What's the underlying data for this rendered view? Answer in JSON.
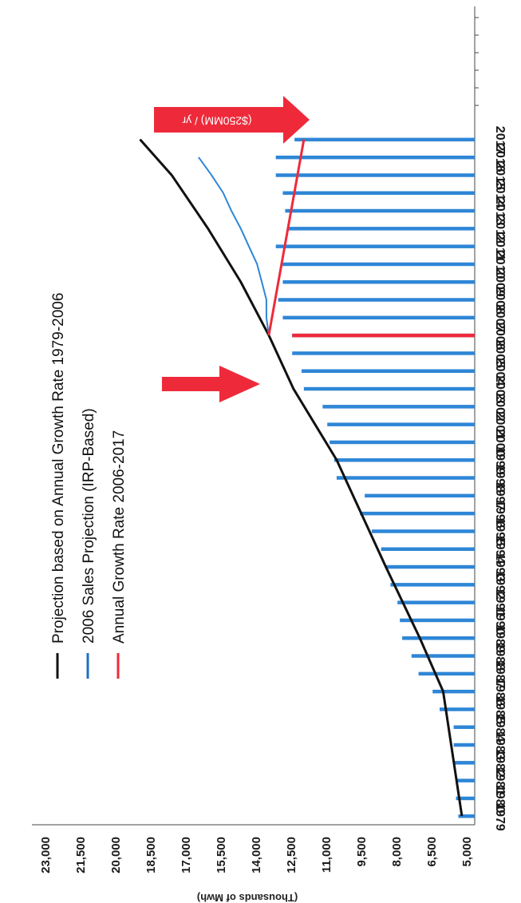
{
  "chart_data": {
    "type": "bar",
    "orientation": "rotated-90",
    "ylabel": "(Thousands of Mwh)",
    "y_ticks": [
      "5,000",
      "6,500",
      "8,000",
      "9,500",
      "11,000",
      "12,500",
      "14,000",
      "15,500",
      "17,000",
      "18,500",
      "20,000",
      "21,500",
      "23,000"
    ],
    "ylim": [
      5000,
      23000
    ],
    "categories": [
      "1979",
      "1980",
      "1981",
      "1982",
      "1983",
      "1984",
      "1985",
      "1986",
      "1987",
      "1988",
      "1989",
      "1990",
      "1991",
      "1992",
      "1993",
      "1994",
      "1995",
      "1996",
      "1997",
      "1998",
      "1999",
      "2000",
      "2001",
      "2002",
      "2003",
      "2004",
      "2005",
      "2006",
      "2007",
      "2008",
      "2009",
      "2010",
      "2011",
      "2012",
      "2013",
      "2014",
      "2015",
      "2016",
      "2017"
    ],
    "series": [
      {
        "name": "",
        "color": "#2e86d6",
        "values": [
          5700,
          5800,
          5800,
          5900,
          5900,
          5900,
          6500,
          6800,
          7400,
          7700,
          8100,
          8200,
          8300,
          8600,
          8800,
          9000,
          9400,
          9900,
          9700,
          10900,
          11000,
          11200,
          11300,
          11500,
          12300,
          12400,
          12800,
          12800,
          13200,
          13400,
          13200,
          13300,
          13500,
          13000,
          13100,
          13200,
          13500,
          13500,
          12700
        ]
      },
      {
        "name": "Projection based on Annual Growth Rate 1979-2006",
        "type": "line",
        "color": "#111111",
        "x": [
          "1979",
          "1986",
          "1989",
          "1993",
          "1999",
          "2003",
          "2006",
          "2009",
          "2012",
          "2015",
          "2017"
        ],
        "values": [
          5550,
          6350,
          7350,
          8800,
          10900,
          12750,
          13800,
          15000,
          16400,
          17950,
          19300
        ]
      },
      {
        "name": "2006 Sales Projection (IRP-Based)",
        "type": "line",
        "color": "#2e86d6",
        "x": [
          "2006",
          "2007",
          "2008",
          "2009",
          "2010",
          "2011",
          "2012",
          "2013",
          "2014",
          "2015",
          "2016"
        ],
        "values": [
          13800,
          13900,
          13900,
          14100,
          14300,
          14650,
          15000,
          15400,
          15750,
          16250,
          16800
        ]
      },
      {
        "name": "Annual Growth Rate 2006-2017",
        "type": "line",
        "color": "#ee2a3a",
        "x": [
          "2006",
          "2017"
        ],
        "values": [
          13800,
          12300
        ]
      }
    ],
    "annotations": [
      {
        "text": "($250MM) / yr",
        "near": "2017"
      }
    ],
    "legend": [
      {
        "label": "Projection based on Annual Growth Rate 1979-2006",
        "color": "#111111"
      },
      {
        "label": "2006 Sales Projection (IRP-Based)",
        "color": "#1f6fc4"
      },
      {
        "label": "Annual Growth Rate 2006-2017",
        "color": "#ee2a3a"
      }
    ],
    "legend_position": "top-left",
    "highlight_category": "2006",
    "grid": false
  }
}
